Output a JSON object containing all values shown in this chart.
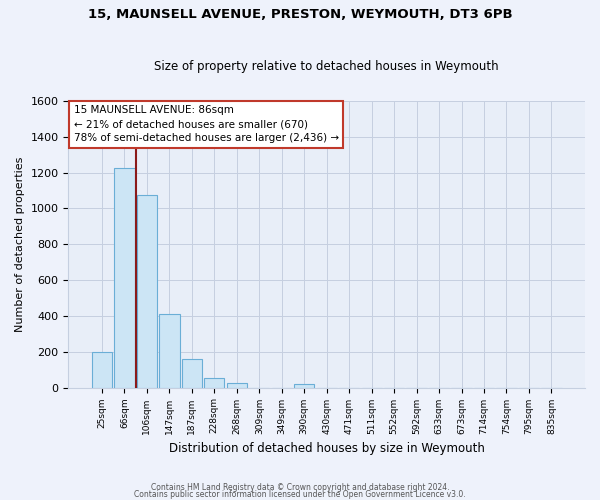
{
  "title": "15, MAUNSELL AVENUE, PRESTON, WEYMOUTH, DT3 6PB",
  "subtitle": "Size of property relative to detached houses in Weymouth",
  "xlabel": "Distribution of detached houses by size in Weymouth",
  "ylabel": "Number of detached properties",
  "bar_labels": [
    "25sqm",
    "66sqm",
    "106sqm",
    "147sqm",
    "187sqm",
    "228sqm",
    "268sqm",
    "309sqm",
    "349sqm",
    "390sqm",
    "430sqm",
    "471sqm",
    "511sqm",
    "552sqm",
    "592sqm",
    "633sqm",
    "673sqm",
    "714sqm",
    "754sqm",
    "795sqm",
    "835sqm"
  ],
  "bar_values": [
    200,
    1225,
    1075,
    410,
    160,
    55,
    25,
    0,
    0,
    20,
    0,
    0,
    0,
    0,
    0,
    0,
    0,
    0,
    0,
    0,
    0
  ],
  "bar_color": "#cce5f5",
  "bar_edge_color": "#6aaed6",
  "vline_x_idx": 1.5,
  "vline_color": "#8b1a1a",
  "ylim": [
    0,
    1600
  ],
  "yticks": [
    0,
    200,
    400,
    600,
    800,
    1000,
    1200,
    1400,
    1600
  ],
  "annotation_title": "15 MAUNSELL AVENUE: 86sqm",
  "annotation_line1": "← 21% of detached houses are smaller (670)",
  "annotation_line2": "78% of semi-detached houses are larger (2,436) →",
  "annotation_box_color": "#ffffff",
  "annotation_box_edge": "#c0392b",
  "footer1": "Contains HM Land Registry data © Crown copyright and database right 2024.",
  "footer2": "Contains public sector information licensed under the Open Government Licence v3.0.",
  "bg_color": "#eef2fb",
  "plot_bg_color": "#e8eef8",
  "grid_color": "#c5cfe0"
}
